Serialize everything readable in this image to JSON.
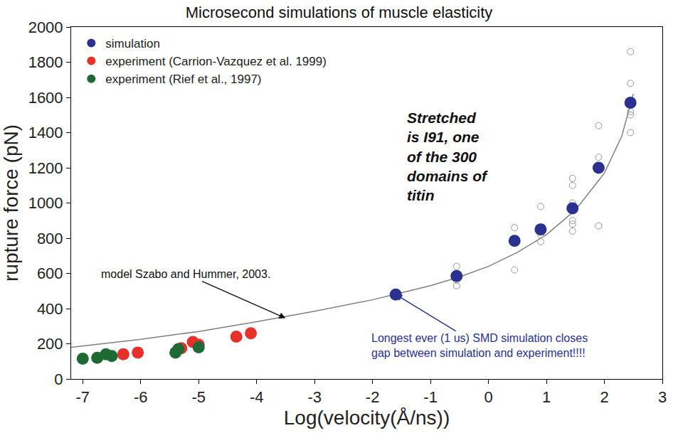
{
  "chart_data": {
    "type": "scatter",
    "title": "Microsecond simulations of muscle elasticity",
    "x_label": "Log(velocity(Å/ns))",
    "y_label": "rupture force (pN)",
    "xlim": [
      -7.2,
      3
    ],
    "xticks": [
      -7,
      -6,
      -5,
      -4,
      -3,
      -2,
      -1,
      0,
      1,
      2,
      3
    ],
    "ylim": [
      0,
      2000
    ],
    "yticks": [
      0,
      200,
      400,
      600,
      800,
      1000,
      1200,
      1400,
      1600,
      1800,
      2000
    ],
    "grid": false,
    "legend": "top left",
    "series": [
      {
        "type": "line",
        "color": "#808080",
        "line_style": "solid",
        "x": [
          -7.2,
          -6,
          -5,
          -4,
          -3,
          -2,
          -1.5,
          -1,
          -0.5,
          0,
          0.5,
          1,
          1.5,
          2,
          2.3,
          2.5
        ],
        "values": [
          180,
          225,
          270,
          325,
          385,
          450,
          490,
          530,
          580,
          640,
          720,
          820,
          960,
          1170,
          1380,
          1620
        ]
      },
      {
        "type": "scatter",
        "color": "#999999",
        "marker": "circle-open",
        "x": [
          -0.55,
          -0.55,
          -0.55,
          0.45,
          0.45,
          0.45,
          0.9,
          0.9,
          0.9,
          1.45,
          1.45,
          1.45,
          1.45,
          1.45,
          1.45,
          1.9,
          1.9,
          1.9,
          2.45,
          2.45,
          2.45,
          2.45,
          2.45
        ],
        "values": [
          530,
          560,
          640,
          620,
          790,
          860,
          780,
          820,
          980,
          840,
          880,
          900,
          1000,
          1100,
          1140,
          870,
          1260,
          1440,
          1400,
          1500,
          1520,
          1680,
          1860
        ]
      },
      {
        "name": "simulation",
        "type": "scatter",
        "color": "#2b3191",
        "marker": "circle",
        "x": [
          -1.6,
          -0.55,
          0.45,
          0.9,
          1.45,
          1.9,
          2.45
        ],
        "values": [
          480,
          585,
          785,
          850,
          970,
          1200,
          1570
        ]
      },
      {
        "name": "experiment (Carrion-Vazquez et al. 1999)",
        "type": "scatter",
        "color": "#e8302a",
        "marker": "circle",
        "x": [
          -6.3,
          -6.05,
          -5.3,
          -5.1,
          -5.0,
          -4.35,
          -4.1
        ],
        "values": [
          140,
          150,
          175,
          210,
          195,
          240,
          260
        ]
      },
      {
        "name": "experiment (Rief et al., 1997)",
        "type": "scatter",
        "color": "#1d6a35",
        "marker": "circle",
        "x": [
          -7.0,
          -6.75,
          -6.6,
          -6.5,
          -5.4,
          -5.35,
          -5.0
        ],
        "values": [
          115,
          120,
          140,
          130,
          150,
          170,
          180
        ]
      }
    ],
    "annotations": [
      {
        "text_lines": [
          "Stretched",
          "is I91, one",
          "of the 300",
          "domains of",
          "titin"
        ],
        "color": "#111111"
      },
      {
        "text_lines": [
          "model Szabo and Hummer, 2003."
        ],
        "color": "#111111",
        "x": -3.5,
        "y": 345
      },
      {
        "text_lines": [
          "Longest ever (1 us) SMD simulation closes",
          "gap between simulation and experiment!!!!"
        ],
        "color": "#2b3191",
        "x": -1.6,
        "y": 480
      }
    ]
  }
}
